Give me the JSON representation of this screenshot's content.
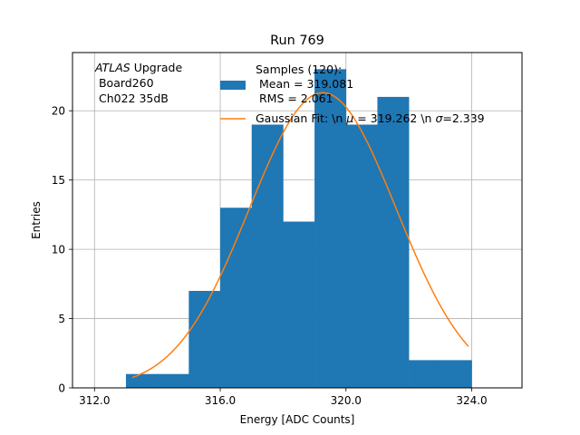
{
  "chart_data": {
    "type": "bar",
    "title": "Run 769",
    "xlabel": "Energy [ADC Counts]",
    "ylabel": "Entries",
    "xlim": [
      311.3,
      325.6
    ],
    "ylim": [
      0,
      24.2
    ],
    "grid": true,
    "x_ticks": [
      312,
      316,
      320,
      324
    ],
    "x_tick_labels": [
      "312.0",
      "316.0",
      "320.0",
      "324.0"
    ],
    "y_ticks": [
      0,
      5,
      10,
      15,
      20
    ],
    "y_tick_labels": [
      "0",
      "5",
      "10",
      "15",
      "20"
    ],
    "bin_edges": [
      313,
      314,
      315,
      316,
      317,
      318,
      319,
      320,
      321,
      322,
      323,
      324
    ],
    "values": [
      1,
      1,
      7,
      13,
      19,
      12,
      23,
      19,
      21,
      2,
      2
    ],
    "fit_curve": {
      "type": "gaussian",
      "mu": 319.262,
      "sigma": 2.339,
      "amplitude": 21.3,
      "x_range": [
        313.2,
        323.9
      ]
    },
    "annotation": {
      "italic": "ATLAS",
      "line1_rest": " Upgrade",
      "line2": " Board260",
      "line3": " Ch022 35dB"
    },
    "legend": {
      "position": "top-right",
      "bar_entry_lines": [
        "Samples (120):",
        " Mean = 319.081",
        " RMS = 2.061"
      ],
      "fit_entry": {
        "before_mu": "Gaussian Fit: \\n ",
        "mu_symbol": "μ",
        "mid": " = 319.262 \\n ",
        "sigma_symbol": "σ",
        "after_sigma": "=2.339"
      }
    },
    "colors": {
      "bars": "#1f77b4",
      "fit": "#ff7f0e",
      "grid": "#b0b0b0"
    }
  }
}
